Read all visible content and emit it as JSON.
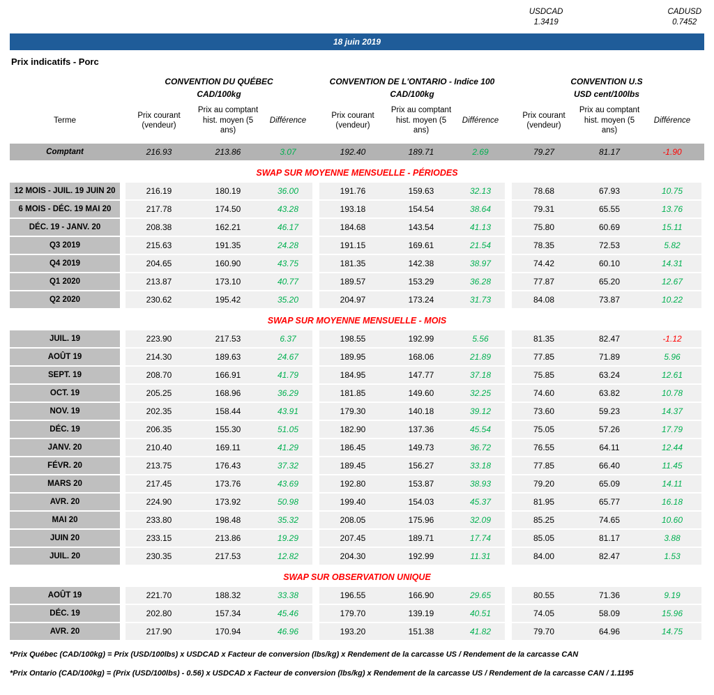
{
  "fx": {
    "usdcad_label": "USDCAD",
    "usdcad_value": "1.3419",
    "cadusd_label": "CADUSD",
    "cadusd_value": "0.7452"
  },
  "banner": {
    "date": "18 juin 2019"
  },
  "title": "Prix indicatifs - Porc",
  "groups": [
    {
      "name": "CONVENTION DU QUÉBEC",
      "unit": "CAD/100kg"
    },
    {
      "name": "CONVENTION DE L'ONTARIO - Indice 100",
      "unit": "CAD/100kg"
    },
    {
      "name": "CONVENTION U.S",
      "unit": "USD cent/100lbs"
    }
  ],
  "columns": {
    "terme": "Terme",
    "prix_courant": "Prix courant (vendeur)",
    "prix_comptant": "Prix au comptant hist. moyen (5 ans)",
    "difference": "Différence"
  },
  "spot_row": {
    "term": "Comptant",
    "values": [
      "216.93",
      "213.86",
      "3.07",
      "192.40",
      "189.71",
      "2.69",
      "79.27",
      "81.17",
      "-1.90"
    ]
  },
  "sections": [
    {
      "header": "SWAP SUR MOYENNE MENSUELLE - PÉRIODES",
      "rows": [
        {
          "term": "12 MOIS -  JUIL. 19 JUIN 20",
          "values": [
            "216.19",
            "180.19",
            "36.00",
            "191.76",
            "159.63",
            "32.13",
            "78.68",
            "67.93",
            "10.75"
          ]
        },
        {
          "term": "6 MOIS -  DÉC. 19 MAI 20",
          "values": [
            "217.78",
            "174.50",
            "43.28",
            "193.18",
            "154.54",
            "38.64",
            "79.31",
            "65.55",
            "13.76"
          ]
        },
        {
          "term": "DÉC. 19 -  JANV. 20",
          "values": [
            "208.38",
            "162.21",
            "46.17",
            "184.68",
            "143.54",
            "41.13",
            "75.80",
            "60.69",
            "15.11"
          ]
        },
        {
          "term": "Q3 2019",
          "values": [
            "215.63",
            "191.35",
            "24.28",
            "191.15",
            "169.61",
            "21.54",
            "78.35",
            "72.53",
            "5.82"
          ]
        },
        {
          "term": "Q4 2019",
          "values": [
            "204.65",
            "160.90",
            "43.75",
            "181.35",
            "142.38",
            "38.97",
            "74.42",
            "60.10",
            "14.31"
          ]
        },
        {
          "term": "Q1 2020",
          "values": [
            "213.87",
            "173.10",
            "40.77",
            "189.57",
            "153.29",
            "36.28",
            "77.87",
            "65.20",
            "12.67"
          ]
        },
        {
          "term": "Q2 2020",
          "values": [
            "230.62",
            "195.42",
            "35.20",
            "204.97",
            "173.24",
            "31.73",
            "84.08",
            "73.87",
            "10.22"
          ]
        }
      ]
    },
    {
      "header": "SWAP SUR MOYENNE MENSUELLE - MOIS",
      "rows": [
        {
          "term": "JUIL. 19",
          "values": [
            "223.90",
            "217.53",
            "6.37",
            "198.55",
            "192.99",
            "5.56",
            "81.35",
            "82.47",
            "-1.12"
          ]
        },
        {
          "term": "AOÛT 19",
          "values": [
            "214.30",
            "189.63",
            "24.67",
            "189.95",
            "168.06",
            "21.89",
            "77.85",
            "71.89",
            "5.96"
          ]
        },
        {
          "term": "SEPT. 19",
          "values": [
            "208.70",
            "166.91",
            "41.79",
            "184.95",
            "147.77",
            "37.18",
            "75.85",
            "63.24",
            "12.61"
          ]
        },
        {
          "term": "OCT. 19",
          "values": [
            "205.25",
            "168.96",
            "36.29",
            "181.85",
            "149.60",
            "32.25",
            "74.60",
            "63.82",
            "10.78"
          ]
        },
        {
          "term": "NOV. 19",
          "values": [
            "202.35",
            "158.44",
            "43.91",
            "179.30",
            "140.18",
            "39.12",
            "73.60",
            "59.23",
            "14.37"
          ]
        },
        {
          "term": "DÉC. 19",
          "values": [
            "206.35",
            "155.30",
            "51.05",
            "182.90",
            "137.36",
            "45.54",
            "75.05",
            "57.26",
            "17.79"
          ]
        },
        {
          "term": "JANV. 20",
          "values": [
            "210.40",
            "169.11",
            "41.29",
            "186.45",
            "149.73",
            "36.72",
            "76.55",
            "64.11",
            "12.44"
          ]
        },
        {
          "term": "FÉVR. 20",
          "values": [
            "213.75",
            "176.43",
            "37.32",
            "189.45",
            "156.27",
            "33.18",
            "77.85",
            "66.40",
            "11.45"
          ]
        },
        {
          "term": "MARS 20",
          "values": [
            "217.45",
            "173.76",
            "43.69",
            "192.80",
            "153.87",
            "38.93",
            "79.20",
            "65.09",
            "14.11"
          ]
        },
        {
          "term": "AVR. 20",
          "values": [
            "224.90",
            "173.92",
            "50.98",
            "199.40",
            "154.03",
            "45.37",
            "81.95",
            "65.77",
            "16.18"
          ]
        },
        {
          "term": "MAI 20",
          "values": [
            "233.80",
            "198.48",
            "35.32",
            "208.05",
            "175.96",
            "32.09",
            "85.25",
            "74.65",
            "10.60"
          ]
        },
        {
          "term": "JUIN 20",
          "values": [
            "233.15",
            "213.86",
            "19.29",
            "207.45",
            "189.71",
            "17.74",
            "85.05",
            "81.17",
            "3.88"
          ]
        },
        {
          "term": "JUIL. 20",
          "values": [
            "230.35",
            "217.53",
            "12.82",
            "204.30",
            "192.99",
            "11.31",
            "84.00",
            "82.47",
            "1.53"
          ]
        }
      ]
    },
    {
      "header": "SWAP SUR OBSERVATION UNIQUE",
      "rows": [
        {
          "term": "AOÛT 19",
          "values": [
            "221.70",
            "188.32",
            "33.38",
            "196.55",
            "166.90",
            "29.65",
            "80.55",
            "71.36",
            "9.19"
          ]
        },
        {
          "term": "DÉC. 19",
          "values": [
            "202.80",
            "157.34",
            "45.46",
            "179.70",
            "139.19",
            "40.51",
            "74.05",
            "58.09",
            "15.96"
          ]
        },
        {
          "term": "AVR. 20",
          "values": [
            "217.90",
            "170.94",
            "46.96",
            "193.20",
            "151.38",
            "41.82",
            "79.70",
            "64.96",
            "14.75"
          ]
        }
      ]
    }
  ],
  "footnotes": [
    "*Prix Québec (CAD/100kg) = Prix (USD/100lbs) x USDCAD x Facteur de conversion (lbs/kg) x Rendement de la carcasse US / Rendement de la carcasse CAN",
    "*Prix Ontario (CAD/100kg) = (Prix (USD/100lbs) - 0.56) x USDCAD x Facteur de conversion (lbs/kg) x Rendement de la carcasse US / Rendement de la carcasse CAN / 1.1195"
  ],
  "colors": {
    "positive": "#00B050",
    "negative": "#FF0000",
    "banner_blue": "#1F5C99",
    "section_red": "#FF0000",
    "term_gray": "#BFBFBF",
    "spot_gray": "#B3B3B3",
    "cell_gray": "#F0F0F0"
  }
}
